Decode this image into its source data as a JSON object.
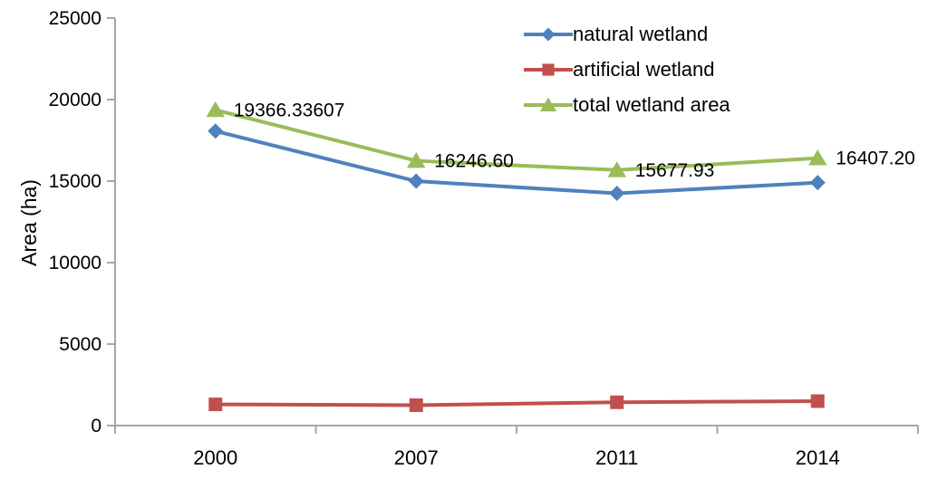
{
  "chart_data": {
    "type": "line",
    "title": "",
    "xlabel": "",
    "ylabel": "Area (ha)",
    "categories": [
      "2000",
      "2007",
      "2011",
      "2014"
    ],
    "ylim": [
      0,
      25000
    ],
    "yticks": [
      "0",
      "5000",
      "10000",
      "15000",
      "20000",
      "25000"
    ],
    "grid": false,
    "legend_position": "inside-top-right",
    "axis_color": "#A6A6A6",
    "text_color": "#000000",
    "series": [
      {
        "name": "natural wetland",
        "marker": "diamond",
        "color": "#4F81BD",
        "values": [
          18066,
          14997,
          14248,
          14907
        ]
      },
      {
        "name": "artificial wetland",
        "marker": "square",
        "color": "#C0504D",
        "values": [
          1300,
          1250,
          1430,
          1500
        ]
      },
      {
        "name": "total wetland area",
        "marker": "triangle",
        "color": "#9BBB59",
        "values": [
          19366.33607,
          16246.6,
          15677.93,
          16407.2
        ],
        "point_labels": [
          "19366.33607",
          "16246.60",
          "15677.93",
          "16407.20"
        ]
      }
    ]
  }
}
